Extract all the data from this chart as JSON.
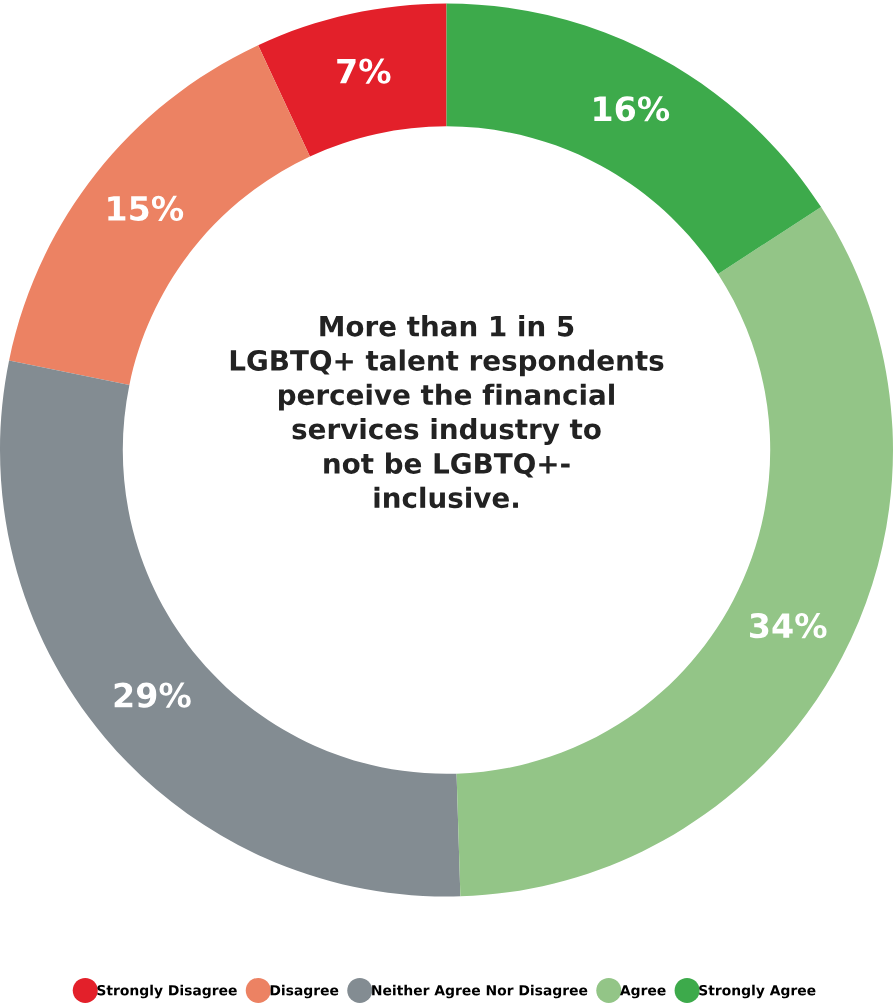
{
  "chart_data": {
    "type": "donut",
    "categories": [
      "Strongly Disagree",
      "Disagree",
      "Neither Agree Nor Disagree",
      "Agree",
      "Strongly Agree"
    ],
    "values": [
      7,
      15,
      29,
      34,
      16
    ],
    "colors": [
      "#e3202a",
      "#ec8263",
      "#838c92",
      "#93c587",
      "#3daa4b"
    ],
    "value_labels": [
      "7%",
      "15%",
      "29%",
      "34%",
      "16%"
    ],
    "annotations": [
      "More than 1 in 5\nLGBTQ+ talent respondents\nperceive the financial\nservices industry to\nnot be LGBTQ+-\ninclusive."
    ],
    "legend": "bottom"
  }
}
